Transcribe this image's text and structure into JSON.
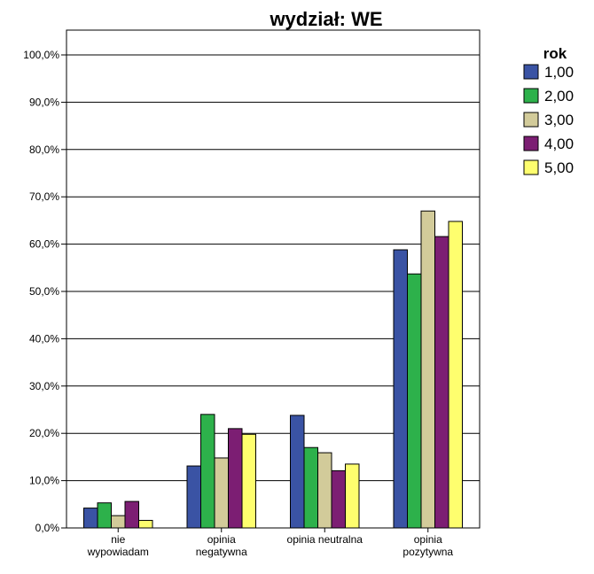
{
  "chart_data": {
    "type": "bar",
    "title": "wydział: WE",
    "xlabel": "",
    "ylabel": "",
    "ylim": [
      0,
      100
    ],
    "yticks": [
      "0,0%",
      "10,0%",
      "20,0%",
      "30,0%",
      "40,0%",
      "50,0%",
      "60,0%",
      "70,0%",
      "80,0%",
      "90,0%",
      "100,0%"
    ],
    "categories": [
      [
        "nie",
        "wypowiadam"
      ],
      [
        "opinia",
        "negatywna"
      ],
      [
        "opinia neutralna"
      ],
      [
        "opinia",
        "pozytywna"
      ]
    ],
    "grid": true,
    "legend": {
      "title": "rok",
      "placement": "top-right"
    },
    "series": [
      {
        "name": "1,00",
        "color": "#3a53a4",
        "values": [
          4.2,
          13.1,
          23.8,
          58.8
        ]
      },
      {
        "name": "2,00",
        "color": "#2db14b",
        "values": [
          5.3,
          24.0,
          17.0,
          53.7
        ]
      },
      {
        "name": "3,00",
        "color": "#d2cb9a",
        "values": [
          2.6,
          14.8,
          15.9,
          67.0
        ]
      },
      {
        "name": "4,00",
        "color": "#7c1e73",
        "values": [
          5.6,
          21.0,
          12.1,
          61.6
        ]
      },
      {
        "name": "5,00",
        "color": "#fefe6e",
        "values": [
          1.6,
          19.8,
          13.5,
          64.8
        ]
      }
    ]
  }
}
